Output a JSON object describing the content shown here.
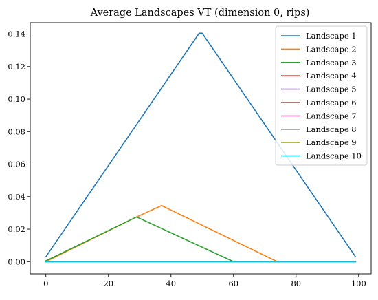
{
  "chart_data": {
    "type": "line",
    "title": "Average Landscapes VT (dimension 0, rips)",
    "xlabel": "",
    "ylabel": "",
    "xlim": [
      -5,
      104
    ],
    "ylim": [
      -0.0075,
      0.147
    ],
    "xticks": [
      0,
      20,
      40,
      60,
      80,
      100
    ],
    "yticks": [
      0.0,
      0.02,
      0.04,
      0.06,
      0.08,
      0.1,
      0.12,
      0.14
    ],
    "xtick_labels": [
      "0",
      "20",
      "40",
      "60",
      "80",
      "100"
    ],
    "ytick_labels": [
      "0.00",
      "0.02",
      "0.04",
      "0.06",
      "0.08",
      "0.10",
      "0.12",
      "0.14"
    ],
    "grid": false,
    "legend_position": "top-right",
    "series": [
      {
        "name": "Landscape 1",
        "color": "#1f77b4",
        "points": [
          [
            0,
            0.003
          ],
          [
            49,
            0.1405
          ],
          [
            50,
            0.1405
          ],
          [
            99,
            0.003
          ]
        ]
      },
      {
        "name": "Landscape 2",
        "color": "#ff7f0e",
        "points": [
          [
            0,
            0.0
          ],
          [
            29,
            0.0275
          ],
          [
            37,
            0.0345
          ],
          [
            74,
            0.0
          ],
          [
            99,
            0.0
          ]
        ]
      },
      {
        "name": "Landscape 3",
        "color": "#2ca02c",
        "points": [
          [
            0,
            0.0005
          ],
          [
            29,
            0.0275
          ],
          [
            60,
            0.0
          ],
          [
            99,
            0.0
          ]
        ]
      },
      {
        "name": "Landscape 4",
        "color": "#d62728",
        "points": [
          [
            0,
            0.0
          ],
          [
            99,
            0.0
          ]
        ]
      },
      {
        "name": "Landscape 5",
        "color": "#9467bd",
        "points": [
          [
            0,
            0.0
          ],
          [
            99,
            0.0
          ]
        ]
      },
      {
        "name": "Landscape 6",
        "color": "#8c564b",
        "points": [
          [
            0,
            0.0
          ],
          [
            99,
            0.0
          ]
        ]
      },
      {
        "name": "Landscape 7",
        "color": "#e377c2",
        "points": [
          [
            0,
            0.0
          ],
          [
            99,
            0.0
          ]
        ]
      },
      {
        "name": "Landscape 8",
        "color": "#7f7f7f",
        "points": [
          [
            0,
            0.0
          ],
          [
            99,
            0.0
          ]
        ]
      },
      {
        "name": "Landscape 9",
        "color": "#bcbd22",
        "points": [
          [
            0,
            0.0
          ],
          [
            99,
            0.0
          ]
        ]
      },
      {
        "name": "Landscape 10",
        "color": "#17becf",
        "points": [
          [
            0,
            0.0
          ],
          [
            99,
            0.0
          ]
        ]
      }
    ]
  }
}
